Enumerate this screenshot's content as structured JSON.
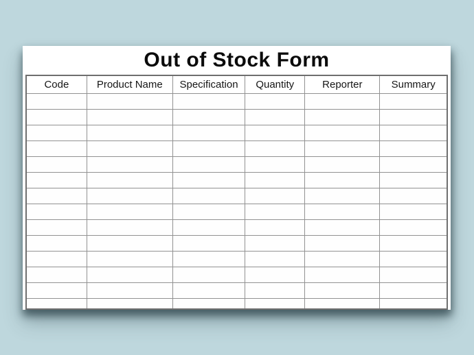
{
  "page": {
    "background_color": "#bed7dd",
    "card_color": "#ffffff",
    "grid_line_color": "#919191",
    "outer_border_color": "#6e6e6e",
    "title_color": "#0b0b0b"
  },
  "form": {
    "title": "Out of Stock Form",
    "columns": [
      "Code",
      "Product Name",
      "Specification",
      "Quantity",
      "Reporter",
      "Summary"
    ],
    "empty_row_count": 14,
    "cells_value": ""
  }
}
